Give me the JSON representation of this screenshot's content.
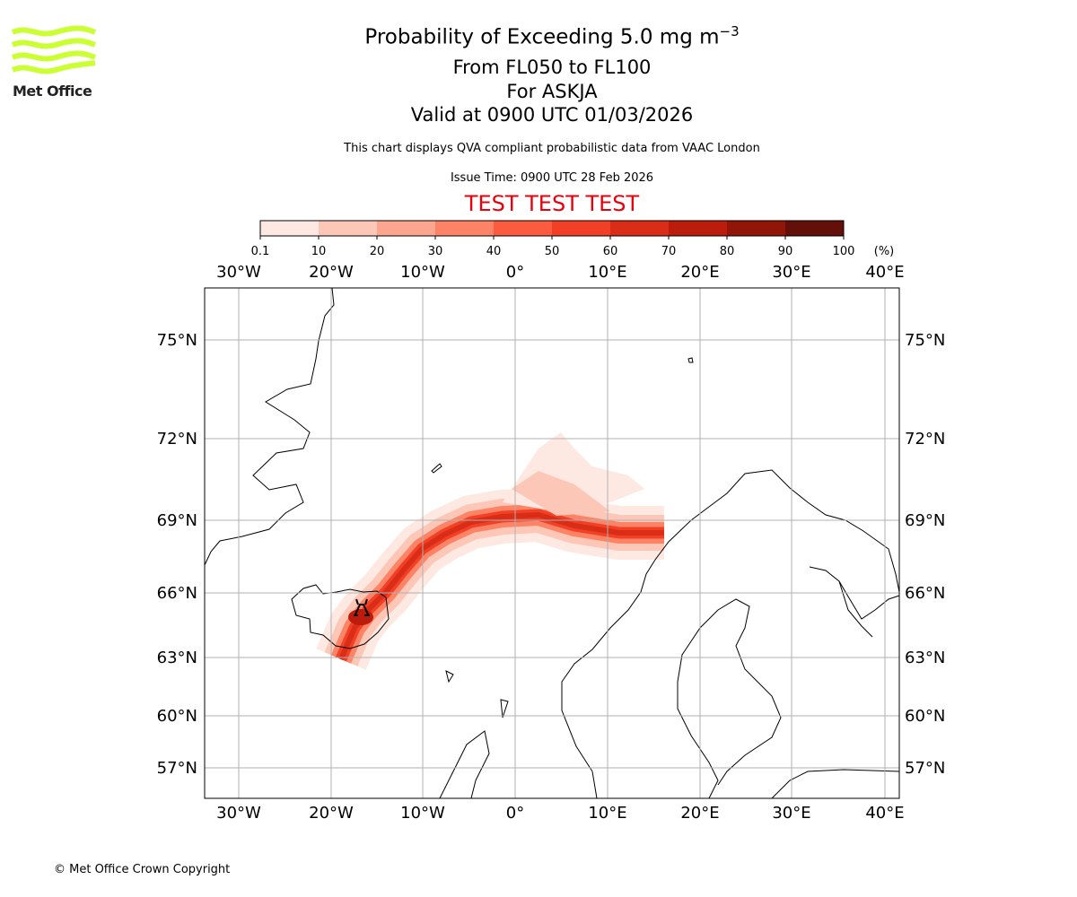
{
  "logo": {
    "text": "Met Office",
    "color": "#ccff33"
  },
  "header": {
    "title_main": "Probability of Exceeding 5.0 mg m",
    "title_sup": "−3",
    "level": "From FL050 to FL100",
    "volcano": "For ASKJA",
    "valid": "Valid at 0900 UTC 01/03/2026",
    "subtitle": "This chart displays QVA compliant probabilistic data from VAAC London",
    "issue": "Issue Time: 0900 UTC 28 Feb 2026",
    "test": "TEST TEST TEST"
  },
  "colorbar": {
    "ticks": [
      "0.1",
      "10",
      "20",
      "30",
      "40",
      "50",
      "60",
      "70",
      "80",
      "90",
      "100"
    ],
    "unit": "(%)",
    "colors": [
      "#fee9e2",
      "#fdc7b8",
      "#fca68f",
      "#fc8365",
      "#fb5c3f",
      "#f24027",
      "#d92d17",
      "#bb1c0c",
      "#911608",
      "#64100a"
    ]
  },
  "map": {
    "lon_labels": [
      "30°W",
      "20°W",
      "10°W",
      "0°",
      "10°E",
      "20°E",
      "30°E",
      "40°E"
    ],
    "lat_labels": [
      "75°N",
      "72°N",
      "69°N",
      "66°N",
      "63°N",
      "60°N",
      "57°N"
    ],
    "volcano_marker": "volcano-icon"
  },
  "footer": "© Met Office Crown Copyright"
}
